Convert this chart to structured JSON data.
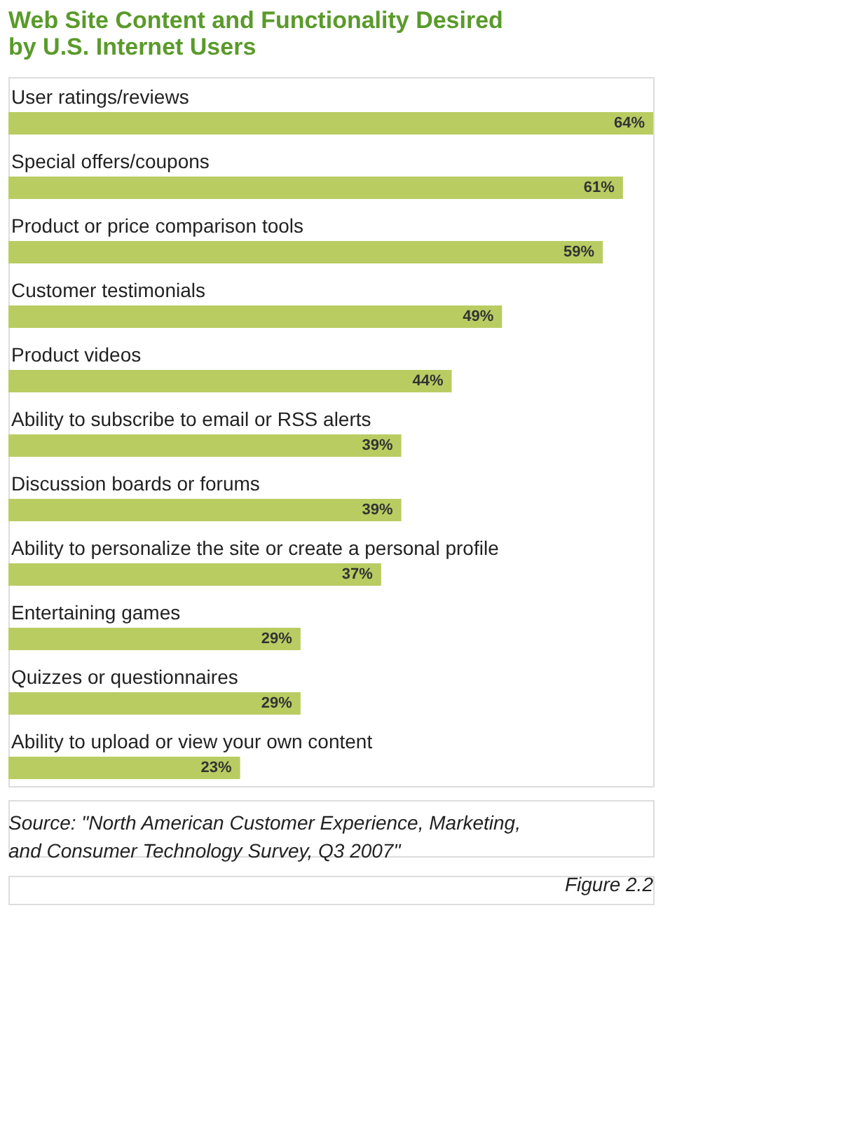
{
  "chart_data": {
    "type": "bar",
    "orientation": "horizontal",
    "title": "Web Site Content and Functionality Desired by U.S. Internet Users",
    "categories": [
      "User ratings/reviews",
      "Special offers/coupons",
      "Product or price comparison tools",
      "Customer testimonials",
      "Product videos",
      "Ability to subscribe to email or RSS alerts",
      "Discussion boards or forums",
      "Ability to personalize the site or create a personal profile",
      "Entertaining games",
      "Quizzes or questionnaires",
      "Ability to upload or view your own content"
    ],
    "values": [
      64,
      61,
      59,
      49,
      44,
      39,
      39,
      37,
      29,
      29,
      23
    ],
    "value_labels": [
      "64%",
      "61%",
      "59%",
      "49%",
      "44%",
      "39%",
      "39%",
      "37%",
      "29%",
      "29%",
      "23%"
    ],
    "color": "#b9cc62",
    "annotations": [
      "Source: \"North American Customer Experience, Marketing, and Consumer Technology Survey, Q3 2007\"",
      "Figure 2.2"
    ]
  }
}
